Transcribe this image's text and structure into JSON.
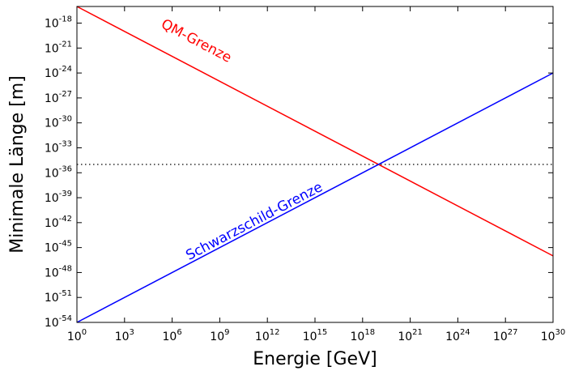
{
  "chart_data": {
    "type": "line",
    "xlabel": "Energie [GeV]",
    "ylabel": "Minimale Länge [m]",
    "x_scale": "log",
    "y_scale": "log",
    "xlim": [
      1,
      1e+30
    ],
    "ylim": [
      1e-54,
      1e-16
    ],
    "x_ticks": [
      {
        "base": "10",
        "exp": "0"
      },
      {
        "base": "10",
        "exp": "3"
      },
      {
        "base": "10",
        "exp": "6"
      },
      {
        "base": "10",
        "exp": "9"
      },
      {
        "base": "10",
        "exp": "12"
      },
      {
        "base": "10",
        "exp": "15"
      },
      {
        "base": "10",
        "exp": "18"
      },
      {
        "base": "10",
        "exp": "21"
      },
      {
        "base": "10",
        "exp": "24"
      },
      {
        "base": "10",
        "exp": "27"
      },
      {
        "base": "10",
        "exp": "30"
      }
    ],
    "y_ticks": [
      {
        "base": "10",
        "exp": "-54"
      },
      {
        "base": "10",
        "exp": "-51"
      },
      {
        "base": "10",
        "exp": "-48"
      },
      {
        "base": "10",
        "exp": "-45"
      },
      {
        "base": "10",
        "exp": "-42"
      },
      {
        "base": "10",
        "exp": "-39"
      },
      {
        "base": "10",
        "exp": "-36"
      },
      {
        "base": "10",
        "exp": "-33"
      },
      {
        "base": "10",
        "exp": "-30"
      },
      {
        "base": "10",
        "exp": "-27"
      },
      {
        "base": "10",
        "exp": "-24"
      },
      {
        "base": "10",
        "exp": "-21"
      },
      {
        "base": "10",
        "exp": "-18"
      }
    ],
    "series": [
      {
        "name": "QM-Grenze",
        "color": "#ff0000",
        "x": [
          1,
          1e+30
        ],
        "y": [
          1e-16,
          1e-46
        ]
      },
      {
        "name": "Schwarzschild-Grenze",
        "color": "#0000ff",
        "x": [
          1,
          1e+30
        ],
        "y": [
          1e-54,
          1e-24
        ]
      }
    ],
    "reference_line": {
      "y": 1e-35,
      "style": "dotted",
      "color": "#000000"
    },
    "annotations": [
      {
        "text": "QM-Grenze",
        "color": "#ff0000",
        "x": 25000000.0,
        "y": 2.5e-21
      },
      {
        "text": "Schwarzschild-Grenze",
        "color": "#0000ff",
        "x": 200000000000.0,
        "y": 5e-43
      }
    ],
    "grid": false,
    "legend": "none"
  }
}
